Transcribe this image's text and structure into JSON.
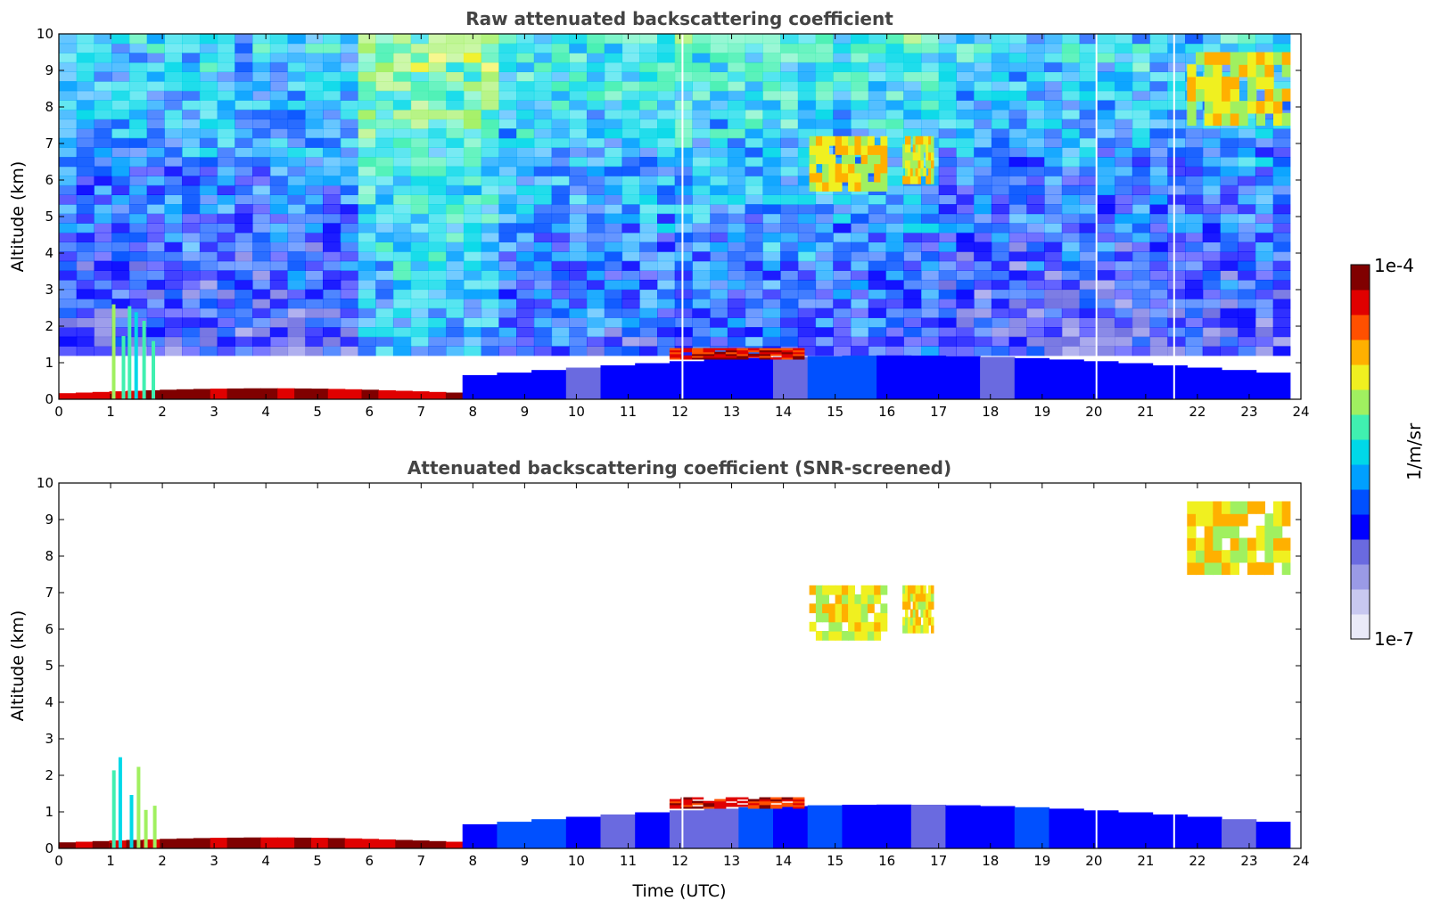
{
  "chart_data": [
    {
      "type": "heatmap",
      "title": "Raw attenuated backscattering coefficient",
      "xlabel": "",
      "ylabel": "Altitude (km)",
      "xlim": [
        0,
        24
      ],
      "ylim": [
        0,
        10
      ],
      "xticks": [
        0,
        1,
        2,
        3,
        4,
        5,
        6,
        7,
        8,
        9,
        10,
        11,
        12,
        13,
        14,
        15,
        16,
        17,
        18,
        19,
        20,
        21,
        22,
        23,
        24
      ],
      "yticks": [
        0,
        1,
        2,
        3,
        4,
        5,
        6,
        7,
        8,
        9,
        10
      ],
      "data_end_time": 23.8,
      "gaps_time": [
        12.05,
        20.05,
        21.55
      ],
      "features": [
        {
          "kind": "noise_field",
          "t_range": [
            0,
            23.8
          ],
          "z_range": [
            1.2,
            10
          ],
          "log10_value": -5.9
        },
        {
          "kind": "boundary_layer",
          "t_range": [
            0,
            7.8
          ],
          "z_range": [
            0,
            0.3
          ],
          "log10_value": -4.2
        },
        {
          "kind": "boundary_layer",
          "t_range": [
            7.8,
            23.8
          ],
          "z_range": [
            0,
            1.2
          ],
          "log10_value": -6.1
        },
        {
          "kind": "low_cloud",
          "t_range": [
            11.8,
            14.4
          ],
          "z_range": [
            1.1,
            1.4
          ],
          "log10_value": -4.3
        },
        {
          "kind": "cirrus",
          "t_range": [
            14.5,
            16.0
          ],
          "z_range": [
            5.7,
            7.2
          ],
          "log10_value": -4.9
        },
        {
          "kind": "cirrus",
          "t_range": [
            16.3,
            16.9
          ],
          "z_range": [
            5.9,
            7.2
          ],
          "log10_value": -4.9
        },
        {
          "kind": "cirrus",
          "t_range": [
            21.8,
            23.8
          ],
          "z_range": [
            7.5,
            9.5
          ],
          "log10_value": -4.9
        },
        {
          "kind": "precip_streaks",
          "t_range": [
            1.0,
            1.9
          ],
          "z_range": [
            0,
            2.6
          ],
          "log10_value": -5.3
        }
      ]
    },
    {
      "type": "heatmap",
      "title": "Attenuated backscattering coefficient (SNR-screened)",
      "xlabel": "Time (UTC)",
      "ylabel": "Altitude (km)",
      "xlim": [
        0,
        24
      ],
      "ylim": [
        0,
        10
      ],
      "xticks": [
        0,
        1,
        2,
        3,
        4,
        5,
        6,
        7,
        8,
        9,
        10,
        11,
        12,
        13,
        14,
        15,
        16,
        17,
        18,
        19,
        20,
        21,
        22,
        23,
        24
      ],
      "yticks": [
        0,
        1,
        2,
        3,
        4,
        5,
        6,
        7,
        8,
        9,
        10
      ],
      "data_end_time": 23.8,
      "gaps_time": [
        12.05,
        20.05,
        21.55
      ],
      "features": [
        {
          "kind": "boundary_layer",
          "t_range": [
            0,
            7.8
          ],
          "z_range": [
            0,
            0.3
          ],
          "log10_value": -4.2
        },
        {
          "kind": "boundary_layer",
          "t_range": [
            7.8,
            23.8
          ],
          "z_range": [
            0,
            1.2
          ],
          "log10_value": -6.1
        },
        {
          "kind": "low_cloud",
          "t_range": [
            11.8,
            14.4
          ],
          "z_range": [
            1.1,
            1.4
          ],
          "log10_value": -4.3
        },
        {
          "kind": "cirrus",
          "t_range": [
            14.5,
            16.0
          ],
          "z_range": [
            5.7,
            7.2
          ],
          "log10_value": -4.9
        },
        {
          "kind": "cirrus",
          "t_range": [
            16.3,
            16.9
          ],
          "z_range": [
            5.9,
            7.2
          ],
          "log10_value": -4.9
        },
        {
          "kind": "cirrus",
          "t_range": [
            21.8,
            23.8
          ],
          "z_range": [
            7.5,
            9.5
          ],
          "log10_value": -4.9
        },
        {
          "kind": "precip_streaks",
          "t_range": [
            1.0,
            1.9
          ],
          "z_range": [
            0,
            2.6
          ],
          "log10_value": -5.3
        }
      ]
    }
  ],
  "colorbar": {
    "label": "1/m/sr",
    "max_label": "1e-4",
    "min_label": "1e-7",
    "scale": "log",
    "range": [
      1e-07,
      0.0001
    ],
    "colormap": "jet with light lavender low end",
    "colors": [
      "#eaeaf8",
      "#c8c8f0",
      "#9a9ae6",
      "#6a6ae0",
      "#0000ff",
      "#0050ff",
      "#00a0ff",
      "#00d8e8",
      "#40f0b0",
      "#a0f060",
      "#f0f020",
      "#ffb000",
      "#ff5000",
      "#e00000",
      "#800000"
    ]
  }
}
